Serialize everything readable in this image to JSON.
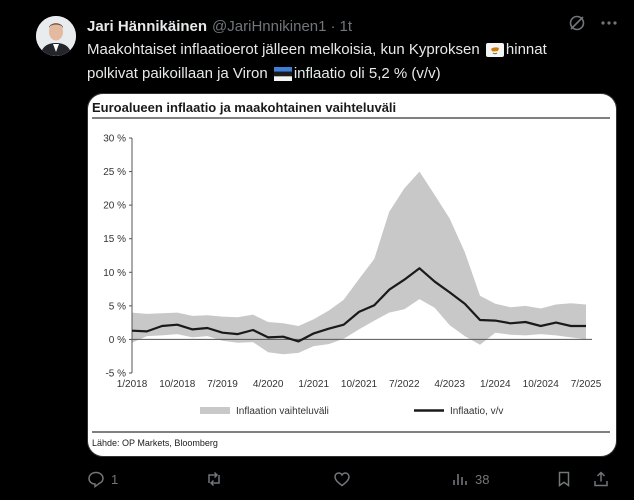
{
  "tweet": {
    "author_name": "Jari Hännikäinen",
    "handle": "@JariHnnikinen1",
    "separator": "·",
    "time": "1t",
    "text_line1_a": "Maakohtaiset inflaatioerot jälleen melkoisia, kun Kyproksen",
    "text_line1_b": "hinnat",
    "text_line2_a": "polkivat paikoillaan ja Viron",
    "text_line2_b": "inflaatio oli 5,2 % (v/v)"
  },
  "actions": {
    "reply_count": "1",
    "views_count": "38"
  },
  "icons": [
    "avatar",
    "grok-icon",
    "more-icon",
    "cyprus-flag-icon",
    "estonia-flag-icon",
    "reply-icon",
    "retweet-icon",
    "like-icon",
    "views-icon",
    "bookmark-icon",
    "share-icon"
  ],
  "chart_data": {
    "type": "line",
    "title": "Euroalueen inflaatio ja maakohtainen vaihteluväli",
    "source": "Lähde: OP Markets, Bloomberg",
    "y_ticks": [
      "30 %",
      "25 %",
      "20 %",
      "15 %",
      "10 %",
      "5 %",
      "0 %",
      "-5 %"
    ],
    "ylim": [
      -5,
      30
    ],
    "x_ticks": [
      "1/2018",
      "10/2018",
      "7/2019",
      "4/2020",
      "1/2021",
      "10/2021",
      "7/2022",
      "4/2023",
      "1/2024",
      "10/2024",
      "7/2025"
    ],
    "legend": {
      "range_label": "Inflaation vaihteluväli",
      "line_label": "Inflaatio, v/v"
    },
    "x": [
      "2018-01",
      "2018-04",
      "2018-07",
      "2018-10",
      "2019-01",
      "2019-04",
      "2019-07",
      "2019-10",
      "2020-01",
      "2020-04",
      "2020-07",
      "2020-10",
      "2021-01",
      "2021-04",
      "2021-07",
      "2021-10",
      "2022-01",
      "2022-04",
      "2022-07",
      "2022-10",
      "2023-01",
      "2023-04",
      "2023-07",
      "2023-10",
      "2024-01",
      "2024-04",
      "2024-07",
      "2024-10",
      "2025-01",
      "2025-04",
      "2025-07"
    ],
    "series": [
      {
        "name": "Inflaatio, v/v",
        "values": [
          1.3,
          1.2,
          2.0,
          2.2,
          1.5,
          1.7,
          1.0,
          0.8,
          1.4,
          0.3,
          0.4,
          -0.3,
          0.9,
          1.6,
          2.2,
          4.1,
          5.1,
          7.4,
          8.9,
          10.6,
          8.6,
          7.0,
          5.3,
          2.9,
          2.8,
          2.4,
          2.6,
          2.0,
          2.5,
          2.0,
          2.0
        ]
      },
      {
        "name": "max",
        "values": [
          4.0,
          3.8,
          3.9,
          4.0,
          3.5,
          3.6,
          3.4,
          3.3,
          3.7,
          2.6,
          2.4,
          2.0,
          3.0,
          4.3,
          5.9,
          9.0,
          12.0,
          19.0,
          22.5,
          25.0,
          21.5,
          18.0,
          13.0,
          6.5,
          5.3,
          4.8,
          5.0,
          4.6,
          5.2,
          5.4,
          5.2
        ]
      },
      {
        "name": "min",
        "values": [
          -0.5,
          0.5,
          0.6,
          0.8,
          0.3,
          0.5,
          -0.2,
          -0.5,
          -0.4,
          -1.9,
          -2.2,
          -2.0,
          -1.0,
          -0.7,
          0.1,
          1.5,
          2.8,
          4.0,
          4.5,
          6.0,
          4.7,
          2.1,
          0.5,
          -0.8,
          1.0,
          0.7,
          0.6,
          0.8,
          0.6,
          0.3,
          0.0
        ]
      }
    ],
    "colors": {
      "range": "#c8c8c8",
      "line": "#1a1a1a"
    }
  },
  "theme": {
    "background": "#000000",
    "text": "#e7e9ea",
    "muted": "#71767b"
  }
}
